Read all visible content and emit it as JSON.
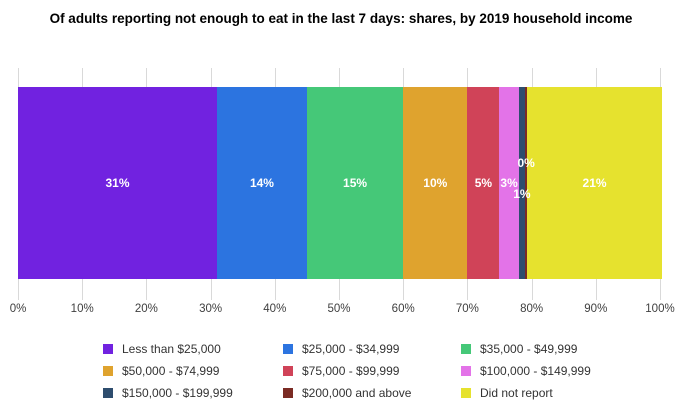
{
  "title": "Of adults reporting not enough to eat in the last 7 days: shares, by 2019 household income",
  "chart_data": {
    "type": "bar",
    "variant": "100-percent-stacked-horizontal",
    "title": "Of adults reporting not enough to eat in the last 7 days: shares, by 2019 household income",
    "categories": [
      "Adults reporting not enough to eat in the last 7 days"
    ],
    "series": [
      {
        "name": "Less than $25,000",
        "value": 31,
        "label": "31%",
        "color": "#7122E0"
      },
      {
        "name": "$25,000 - $34,999",
        "value": 14,
        "label": "14%",
        "color": "#2C74E0"
      },
      {
        "name": "$35,000 - $49,999",
        "value": 15,
        "label": "15%",
        "color": "#45C878"
      },
      {
        "name": "$50,000 - $74,999",
        "value": 10,
        "label": "10%",
        "color": "#DFA32E"
      },
      {
        "name": "$75,000 - $99,999",
        "value": 5,
        "label": "5%",
        "color": "#D04358"
      },
      {
        "name": "$100,000 - $149,999",
        "value": 3,
        "label": "3%",
        "color": "#E373E8"
      },
      {
        "name": "$150,000 - $199,999",
        "value": 1,
        "label": "1%",
        "color": "#2E4D6E",
        "label_dy": 11
      },
      {
        "name": "$200,000 and above",
        "value": 0,
        "label": "0%",
        "color": "#7B2B24",
        "label_dy": -20
      },
      {
        "name": "Did not report",
        "value": 21,
        "label": "21%",
        "color": "#E6E22E"
      }
    ],
    "xlabel": "",
    "ylabel": "",
    "x_axis": {
      "ticks": [
        "0%",
        "10%",
        "20%",
        "30%",
        "40%",
        "50%",
        "60%",
        "70%",
        "80%",
        "90%",
        "100%"
      ],
      "range": [
        0,
        100
      ],
      "grid": true
    },
    "legend_position": "bottom",
    "data_label_color": "#FFFFFF",
    "grid_color": "#D9D9D9",
    "background_color": "#FFFFFF"
  }
}
